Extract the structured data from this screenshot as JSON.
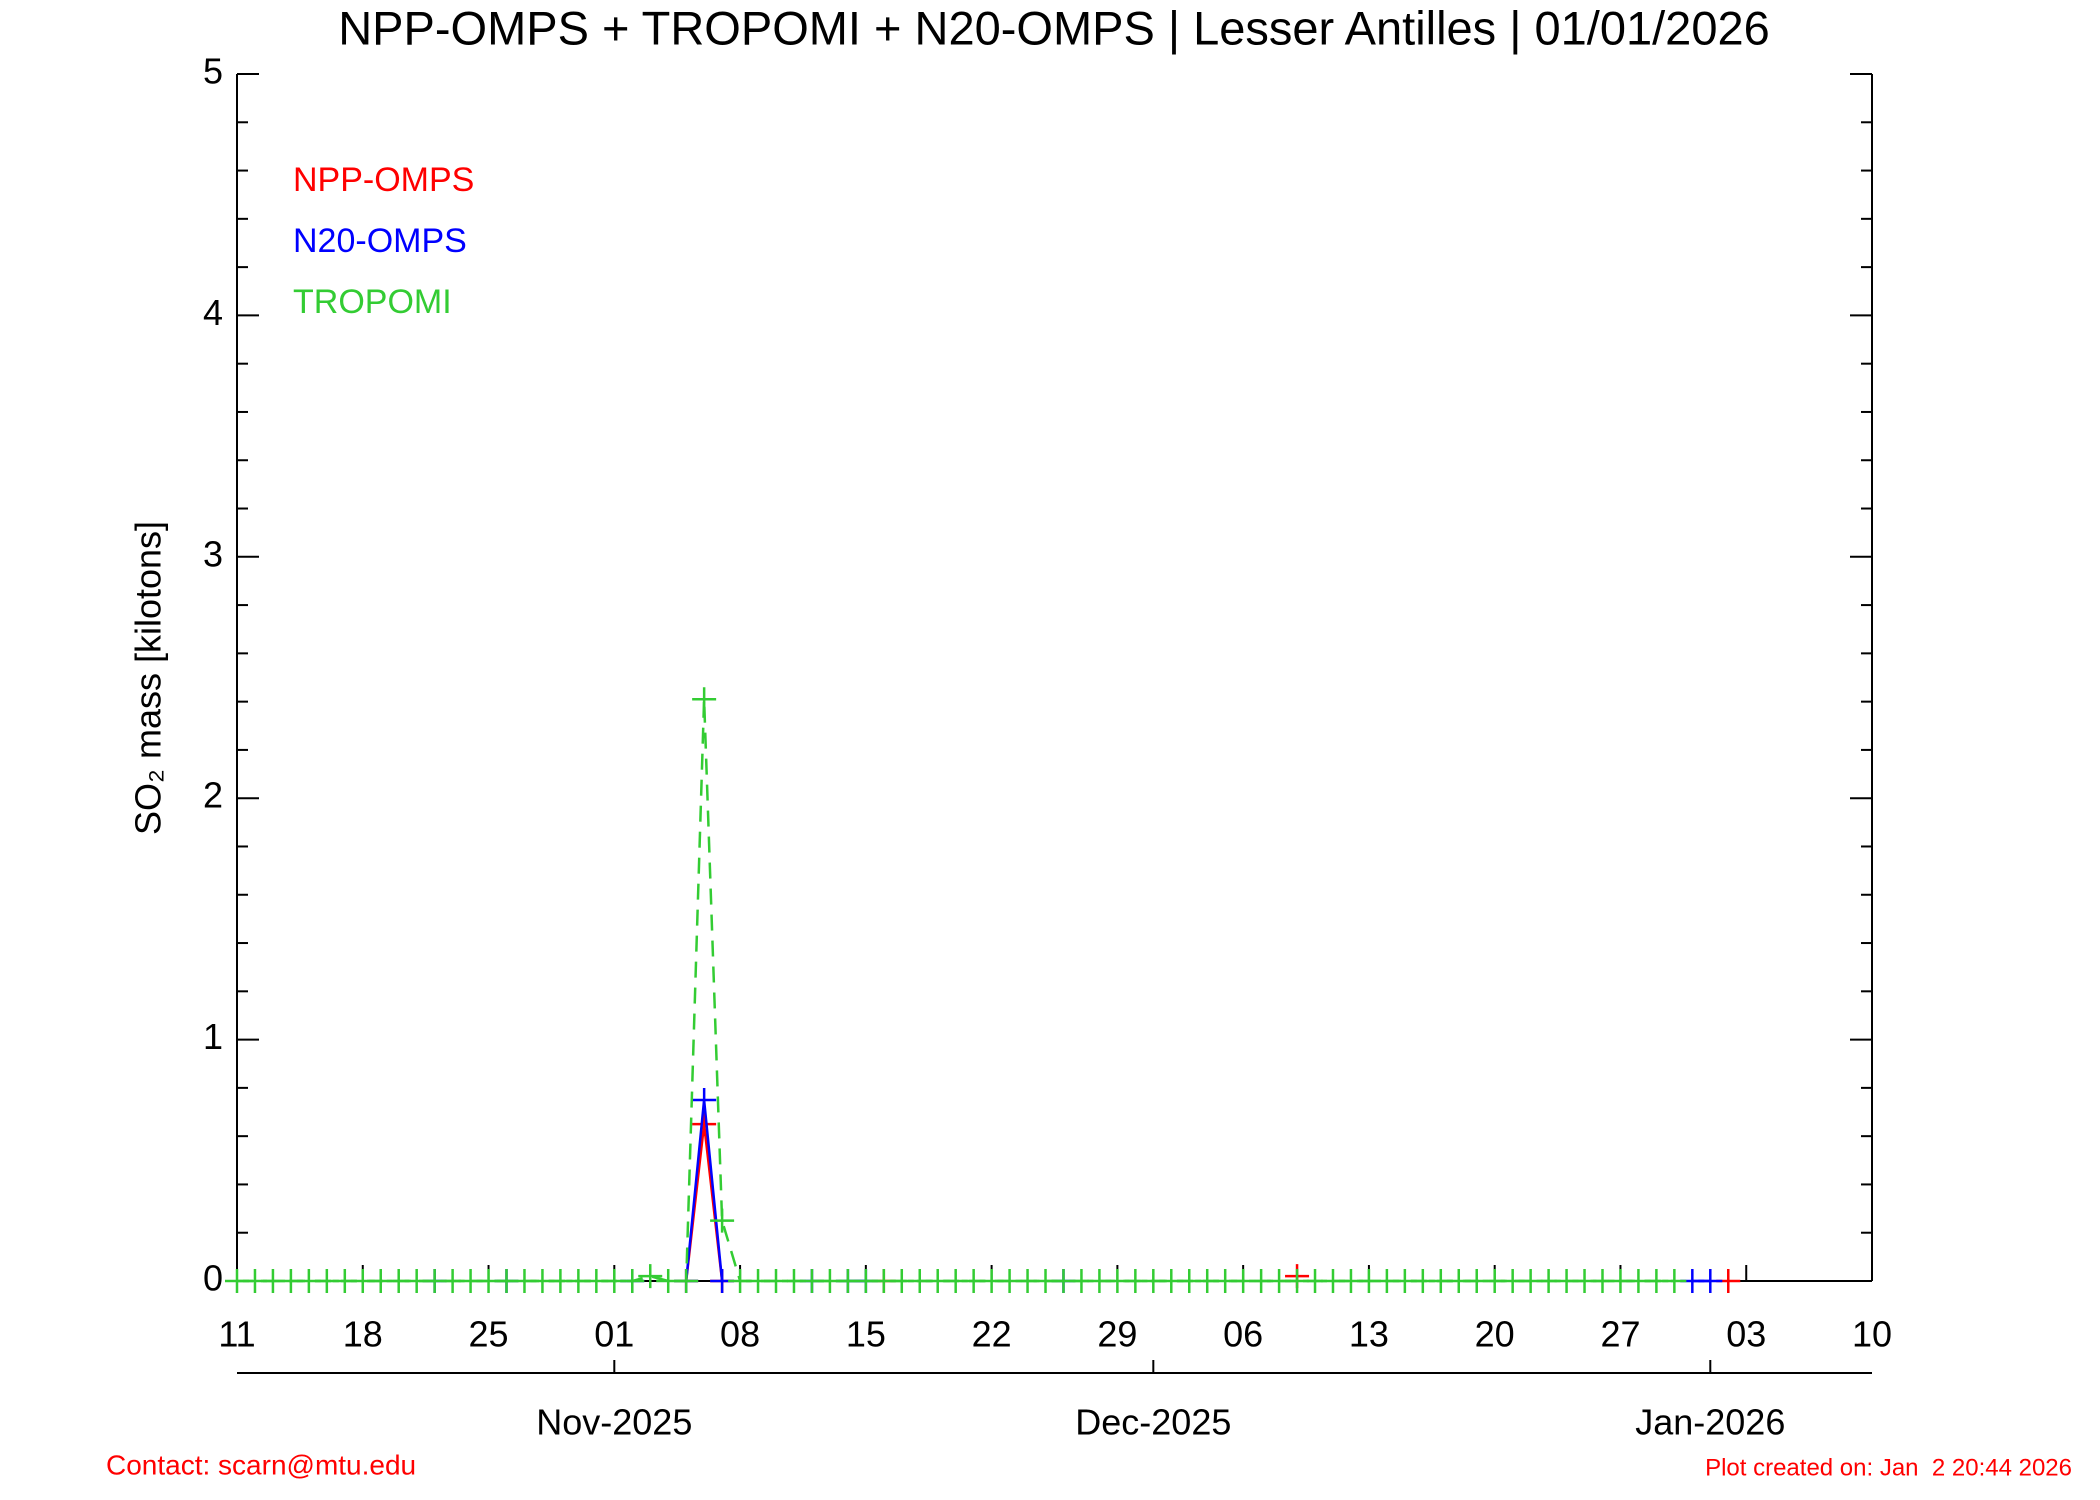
{
  "chart_data": {
    "type": "line",
    "title": "NPP-OMPS + TROPOMI + N20-OMPS | Lesser Antilles | 01/01/2026",
    "y_label": "SO₂ mass [kilotons]",
    "contact": "Contact: scarn@mtu.edu",
    "created": "Plot created on: Jan  2 20:44 2026",
    "x": [
      "2025-10-11",
      "2025-10-12",
      "2025-10-13",
      "2025-10-14",
      "2025-10-15",
      "2025-10-16",
      "2025-10-17",
      "2025-10-18",
      "2025-10-19",
      "2025-10-20",
      "2025-10-21",
      "2025-10-22",
      "2025-10-23",
      "2025-10-24",
      "2025-10-25",
      "2025-10-26",
      "2025-10-27",
      "2025-10-28",
      "2025-10-29",
      "2025-10-30",
      "2025-10-31",
      "2025-11-01",
      "2025-11-02",
      "2025-11-03",
      "2025-11-04",
      "2025-11-05",
      "2025-11-06",
      "2025-11-07",
      "2025-11-08",
      "2025-11-09",
      "2025-11-10",
      "2025-11-11",
      "2025-11-12",
      "2025-11-13",
      "2025-11-14",
      "2025-11-15",
      "2025-11-16",
      "2025-11-17",
      "2025-11-18",
      "2025-11-19",
      "2025-11-20",
      "2025-11-21",
      "2025-11-22",
      "2025-11-23",
      "2025-11-24",
      "2025-11-25",
      "2025-11-26",
      "2025-11-27",
      "2025-11-28",
      "2025-11-29",
      "2025-11-30",
      "2025-12-01",
      "2025-12-02",
      "2025-12-03",
      "2025-12-04",
      "2025-12-05",
      "2025-12-06",
      "2025-12-07",
      "2025-12-08",
      "2025-12-09",
      "2025-12-10",
      "2025-12-11",
      "2025-12-12",
      "2025-12-13",
      "2025-12-14",
      "2025-12-15",
      "2025-12-16",
      "2025-12-17",
      "2025-12-18",
      "2025-12-19",
      "2025-12-20",
      "2025-12-21",
      "2025-12-22",
      "2025-12-23",
      "2025-12-24",
      "2025-12-25",
      "2025-12-26",
      "2025-12-27",
      "2025-12-28",
      "2025-12-29",
      "2025-12-30",
      "2025-12-31",
      "2026-01-01",
      "2026-01-02"
    ],
    "series": [
      {
        "name": "NPP-OMPS",
        "color": "#ff0000",
        "values": [
          null,
          null,
          null,
          null,
          null,
          null,
          null,
          null,
          null,
          null,
          null,
          null,
          null,
          null,
          null,
          null,
          null,
          null,
          null,
          null,
          null,
          null,
          null,
          null,
          null,
          0,
          0.65,
          0,
          null,
          null,
          null,
          null,
          null,
          null,
          null,
          null,
          0,
          null,
          null,
          null,
          null,
          null,
          null,
          null,
          null,
          null,
          null,
          null,
          null,
          null,
          null,
          null,
          null,
          null,
          null,
          null,
          null,
          null,
          null,
          0.02,
          null,
          null,
          null,
          null,
          null,
          null,
          null,
          null,
          null,
          null,
          null,
          null,
          null,
          null,
          null,
          null,
          null,
          null,
          null,
          null,
          null,
          null,
          null,
          0
        ]
      },
      {
        "name": "N20-OMPS",
        "color": "#0000ff",
        "values": [
          null,
          null,
          null,
          null,
          null,
          null,
          null,
          null,
          null,
          null,
          null,
          0,
          null,
          null,
          null,
          0,
          null,
          null,
          null,
          null,
          null,
          null,
          0,
          null,
          null,
          0,
          0.75,
          0,
          null,
          null,
          null,
          null,
          0,
          null,
          0,
          0,
          null,
          null,
          null,
          null,
          null,
          null,
          null,
          null,
          null,
          null,
          0,
          null,
          null,
          null,
          null,
          null,
          null,
          null,
          null,
          null,
          null,
          null,
          null,
          null,
          null,
          null,
          null,
          null,
          null,
          null,
          null,
          null,
          null,
          null,
          null,
          null,
          null,
          null,
          null,
          null,
          null,
          null,
          null,
          null,
          null,
          0,
          0,
          null
        ]
      },
      {
        "name": "TROPOMI",
        "color": "#33cc33",
        "dashed": true,
        "values": [
          0,
          0,
          0,
          0,
          0,
          0,
          0,
          0,
          0,
          0,
          0,
          0,
          0,
          0,
          0,
          0,
          0,
          0,
          0,
          0,
          0,
          0,
          0,
          0.02,
          0,
          0,
          2.41,
          0.25,
          0,
          0,
          0,
          0,
          0,
          0,
          0,
          0,
          0,
          0,
          0,
          0,
          0,
          0,
          0,
          0,
          0,
          0,
          0,
          0,
          0,
          0,
          0,
          0,
          0,
          0,
          0,
          0,
          0,
          0,
          0,
          0,
          0,
          0,
          0,
          0,
          0,
          0,
          0,
          0,
          0,
          0,
          0,
          0,
          0,
          0,
          0,
          0,
          0,
          0,
          0,
          0,
          0,
          null,
          null,
          null
        ]
      }
    ],
    "xlim": [
      "2025-10-11",
      "2026-01-10"
    ],
    "xticks": [
      {
        "value": "2025-10-11",
        "label": "11"
      },
      {
        "value": "2025-10-18",
        "label": "18"
      },
      {
        "value": "2025-10-25",
        "label": "25"
      },
      {
        "value": "2025-11-01",
        "label": "01"
      },
      {
        "value": "2025-11-08",
        "label": "08"
      },
      {
        "value": "2025-11-15",
        "label": "15"
      },
      {
        "value": "2025-11-22",
        "label": "22"
      },
      {
        "value": "2025-11-29",
        "label": "29"
      },
      {
        "value": "2025-12-06",
        "label": "06"
      },
      {
        "value": "2025-12-13",
        "label": "13"
      },
      {
        "value": "2025-12-20",
        "label": "20"
      },
      {
        "value": "2025-12-27",
        "label": "27"
      },
      {
        "value": "2026-01-03",
        "label": "03"
      },
      {
        "value": "2026-01-10",
        "label": "10"
      }
    ],
    "month_ticks": [
      {
        "value": "2025-11-01",
        "label": "Nov-2025"
      },
      {
        "value": "2025-12-01",
        "label": "Dec-2025"
      },
      {
        "value": "2026-01-01",
        "label": "Jan-2026"
      }
    ],
    "ylim": [
      0,
      5
    ],
    "yticks": [
      0,
      1,
      2,
      3,
      4,
      5
    ]
  }
}
